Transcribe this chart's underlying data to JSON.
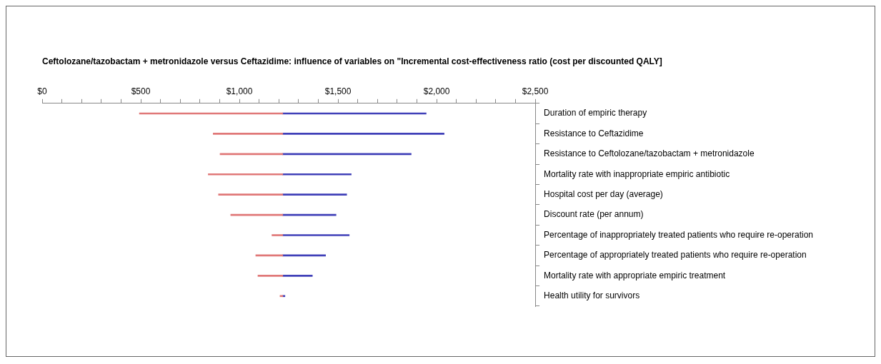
{
  "chart_data": {
    "type": "bar",
    "orientation": "horizontal",
    "title": "Ceftolozane/tazobactam + metronidazole versus Ceftazidime: influence of variables on \"Incremental cost-effectiveness ratio (cost per discounted QALY]",
    "categories": [
      "Duration of empiric therapy",
      "Resistance to Ceftazidime",
      "Resistance to Ceftolozane/tazobactam + metronidazole",
      "Mortality rate with inappropriate empiric antibiotic",
      "Hospital cost per day (average)",
      "Discount rate (per annum)",
      "Percentage of inappropriately treated patients who require re-operation",
      "Percentage of appropriately treated patients who require re-operation",
      "Mortality rate with appropriate empiric treatment",
      "Health utility for survivors"
    ],
    "series": [
      {
        "color": "#e07878",
        "base": [
          1220,
          1220,
          1220,
          1220,
          1220,
          1220,
          1220,
          1220,
          1220,
          1220
        ],
        "values": [
          -727,
          -353,
          -318,
          -378,
          -326,
          -264,
          -55,
          -137,
          -126,
          -14
        ]
      },
      {
        "color": "#4040b8",
        "base": [
          1220,
          1220,
          1220,
          1220,
          1220,
          1220,
          1220,
          1220,
          1220,
          1220
        ],
        "values": [
          727,
          818,
          651,
          347,
          324,
          270,
          337,
          217,
          150,
          11
        ]
      }
    ],
    "xlim": [
      0,
      2500
    ],
    "xticks": [
      {
        "value": 0,
        "label": "$0"
      },
      {
        "value": 100,
        "label": null
      },
      {
        "value": 200,
        "label": null
      },
      {
        "value": 300,
        "label": null
      },
      {
        "value": 400,
        "label": null
      },
      {
        "value": 500,
        "label": "$500"
      },
      {
        "value": 600,
        "label": null
      },
      {
        "value": 700,
        "label": null
      },
      {
        "value": 800,
        "label": null
      },
      {
        "value": 900,
        "label": null
      },
      {
        "value": 1000,
        "label": "$1,000"
      },
      {
        "value": 1100,
        "label": null
      },
      {
        "value": 1200,
        "label": null
      },
      {
        "value": 1300,
        "label": null
      },
      {
        "value": 1400,
        "label": null
      },
      {
        "value": 1500,
        "label": "$1,500"
      },
      {
        "value": 1600,
        "label": null
      },
      {
        "value": 1700,
        "label": null
      },
      {
        "value": 1800,
        "label": null
      },
      {
        "value": 1900,
        "label": null
      },
      {
        "value": 2000,
        "label": "$2,000"
      },
      {
        "value": 2100,
        "label": null
      },
      {
        "value": 2200,
        "label": null
      },
      {
        "value": 2300,
        "label": null
      },
      {
        "value": 2400,
        "label": null
      },
      {
        "value": 2500,
        "label": "$2,500"
      }
    ],
    "grid": false,
    "legend": false
  }
}
